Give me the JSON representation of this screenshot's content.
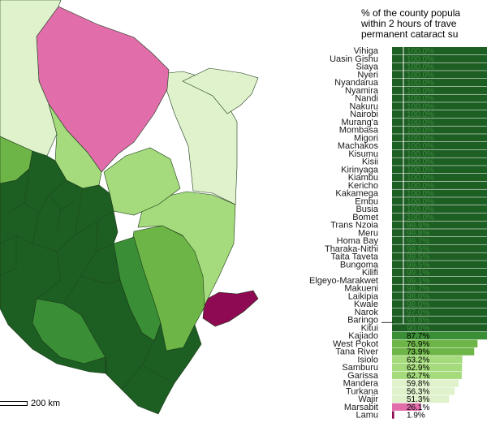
{
  "map": {
    "scale_label": "200 km"
  },
  "chart_data": {
    "type": "bar",
    "orientation": "horizontal",
    "title_lines": [
      "% of the county popula",
      "within 2 hours of trave",
      "permanent cataract su"
    ],
    "xlim": [
      0,
      100
    ],
    "categories": [
      "Vihiga",
      "Uasin Gishu",
      "Siaya",
      "Nyeri",
      "Nyandarua",
      "Nyamira",
      "Nandi",
      "Nakuru",
      "Nairobi",
      "Murang'a",
      "Mombasa",
      "Migori",
      "Machakos",
      "Kisumu",
      "Kisii",
      "Kirinyaga",
      "Kiambu",
      "Kericho",
      "Kakamega",
      "Embu",
      "Busia",
      "Bomet",
      "Trans Nzoia",
      "Meru",
      "Homa Bay",
      "Tharaka-Nithi",
      "Taita Taveta",
      "Bungoma",
      "Kilifi",
      "Elgeyo-Marakwet",
      "Makueni",
      "Laikipia",
      "Kwale",
      "Narok",
      "Baringo",
      "Kitui",
      "Kajiado",
      "West Pokot",
      "Tana River",
      "Isiolo",
      "Samburu",
      "Garissa",
      "Mandera",
      "Turkana",
      "Wajir",
      "Marsabit",
      "Lamu"
    ],
    "values": [
      100.0,
      100.0,
      100.0,
      100.0,
      100.0,
      100.0,
      100.0,
      100.0,
      100.0,
      100.0,
      100.0,
      100.0,
      100.0,
      100.0,
      100.0,
      100.0,
      100.0,
      100.0,
      100.0,
      100.0,
      100.0,
      100.0,
      99.9,
      99.8,
      99.7,
      99.5,
      99.5,
      99.5,
      99.1,
      99.1,
      98.7,
      98.0,
      98.0,
      97.0,
      94.8,
      90.0,
      87.7,
      76.9,
      73.9,
      63.2,
      62.9,
      62.7,
      59.8,
      56.3,
      51.3,
      26.1,
      1.9
    ],
    "value_labels": [
      "100.0%",
      "100.0%",
      "100.0%",
      "100.0%",
      "100.0%",
      "100.0%",
      "100.0%",
      "100.0%",
      "100.0%",
      "100.0%",
      "100.0%",
      "100.0%",
      "100.0%",
      "100.0%",
      "100.0%",
      "100.0%",
      "100.0%",
      "100.0%",
      "100.0%",
      "100.0%",
      "100.0%",
      "100.0%",
      "99.9%",
      "99.8%",
      "99.7%",
      "99.5%",
      "99.5%",
      "99.5%",
      "99.1%",
      "99.1%",
      "98.7%",
      "98.0%",
      "98.0%",
      "97.0%",
      "94.8%",
      "90.0%",
      "87.7%",
      "76.9%",
      "73.9%",
      "63.2%",
      "62.9%",
      "62.7%",
      "59.8%",
      "56.3%",
      "51.3%",
      "26.1%",
      "1.9%"
    ],
    "color_scale": [
      {
        "min": 90,
        "color": "#1d5e23",
        "label_color": "#3b8a3b"
      },
      {
        "min": 80,
        "color": "#3a8e35",
        "label_color": "#000000"
      },
      {
        "min": 70,
        "color": "#6eb547",
        "label_color": "#000000"
      },
      {
        "min": 60,
        "color": "#a5db7c",
        "label_color": "#000000"
      },
      {
        "min": 50,
        "color": "#e0f2cc",
        "label_color": "#000000"
      },
      {
        "min": 10,
        "color": "#e16dab",
        "label_color": "#000000"
      },
      {
        "min": 0,
        "color": "#8e0a52",
        "label_color": "#000000"
      }
    ]
  }
}
